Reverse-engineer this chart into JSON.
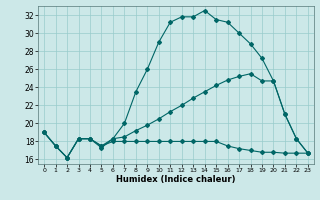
{
  "xlabel": "Humidex (Indice chaleur)",
  "bg_color": "#cce8e8",
  "grid_color": "#99cccc",
  "line_color": "#006666",
  "ylim": [
    15.5,
    33.0
  ],
  "xlim": [
    -0.5,
    23.5
  ],
  "yticks": [
    16,
    18,
    20,
    22,
    24,
    26,
    28,
    30,
    32
  ],
  "xticks": [
    0,
    1,
    2,
    3,
    4,
    5,
    6,
    7,
    8,
    9,
    10,
    11,
    12,
    13,
    14,
    15,
    16,
    17,
    18,
    19,
    20,
    21,
    22,
    23
  ],
  "line1_x": [
    0,
    1,
    2,
    3,
    4,
    5,
    6,
    7,
    8,
    9,
    10,
    11,
    12,
    13,
    14,
    15,
    16,
    17,
    18,
    19,
    20,
    21,
    22,
    23
  ],
  "line1_y": [
    19.0,
    17.5,
    16.2,
    18.3,
    18.3,
    17.3,
    18.3,
    20.0,
    23.5,
    26.0,
    29.0,
    31.2,
    31.8,
    31.8,
    32.5,
    31.5,
    31.2,
    30.0,
    28.8,
    27.2,
    24.7,
    21.0,
    18.3,
    16.7
  ],
  "line2_x": [
    0,
    1,
    2,
    3,
    4,
    5,
    6,
    7,
    8,
    9,
    10,
    11,
    12,
    13,
    14,
    15,
    16,
    17,
    18,
    19,
    20,
    21,
    22,
    23
  ],
  "line2_y": [
    19.0,
    17.5,
    16.2,
    18.3,
    18.3,
    17.5,
    18.0,
    18.0,
    18.0,
    18.0,
    18.0,
    18.0,
    18.0,
    18.0,
    18.0,
    18.0,
    17.5,
    17.2,
    17.0,
    16.8,
    16.8,
    16.7,
    16.7,
    16.7
  ],
  "line3_x": [
    0,
    1,
    2,
    3,
    4,
    5,
    6,
    7,
    8,
    9,
    10,
    11,
    12,
    13,
    14,
    15,
    16,
    17,
    18,
    19,
    20,
    21,
    22,
    23
  ],
  "line3_y": [
    19.0,
    17.5,
    16.2,
    18.3,
    18.3,
    17.5,
    18.3,
    18.5,
    19.2,
    19.8,
    20.5,
    21.3,
    22.0,
    22.8,
    23.5,
    24.2,
    24.8,
    25.2,
    25.5,
    24.7,
    24.7,
    21.0,
    18.3,
    16.7
  ]
}
